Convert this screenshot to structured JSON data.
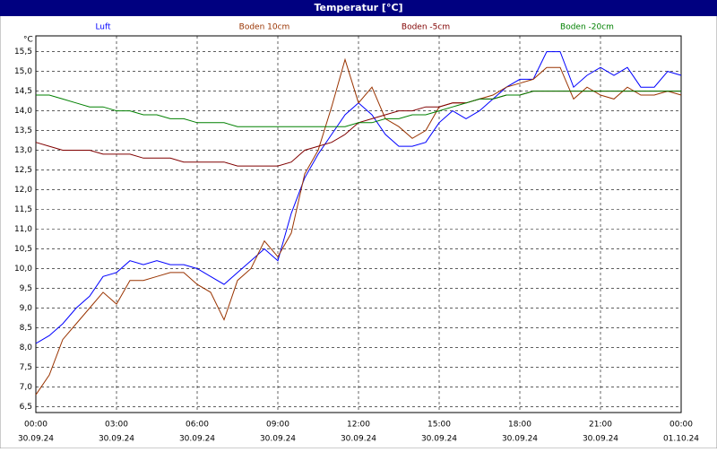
{
  "chart_data": {
    "type": "line",
    "title": "Temperatur [°C]",
    "y_label": "°C",
    "x": [
      0,
      0.5,
      1,
      1.5,
      2,
      2.5,
      3,
      3.5,
      4,
      4.5,
      5,
      5.5,
      6,
      6.5,
      7,
      7.5,
      8,
      8.5,
      9,
      9.5,
      10,
      10.5,
      11,
      11.5,
      12,
      12.5,
      13,
      13.5,
      14,
      14.5,
      15,
      15.5,
      16,
      16.5,
      17,
      17.5,
      18,
      18.5,
      19,
      19.5,
      20,
      20.5,
      21,
      21.5,
      22,
      22.5,
      23,
      23.5,
      24
    ],
    "xlim": [
      0,
      24
    ],
    "xticks": [
      {
        "value": 0,
        "label": "00:00"
      },
      {
        "value": 3,
        "label": "03:00"
      },
      {
        "value": 6,
        "label": "06:00"
      },
      {
        "value": 9,
        "label": "09:00"
      },
      {
        "value": 12,
        "label": "12:00"
      },
      {
        "value": 15,
        "label": "15:00"
      },
      {
        "value": 18,
        "label": "18:00"
      },
      {
        "value": 21,
        "label": "21:00"
      },
      {
        "value": 24,
        "label": "00:00"
      }
    ],
    "xtick_dates": [
      "30.09.24",
      "30.09.24",
      "30.09.24",
      "30.09.24",
      "30.09.24",
      "30.09.24",
      "30.09.24",
      "30.09.24",
      "01.10.24"
    ],
    "ylim": [
      6.35,
      15.9
    ],
    "yticks": [
      {
        "value": 6.5,
        "label": "6,5"
      },
      {
        "value": 7,
        "label": "7,0"
      },
      {
        "value": 7.5,
        "label": "7,5"
      },
      {
        "value": 8,
        "label": "8,0"
      },
      {
        "value": 8.5,
        "label": "8,5"
      },
      {
        "value": 9,
        "label": "9,0"
      },
      {
        "value": 9.5,
        "label": "9,5"
      },
      {
        "value": 10,
        "label": "10,0"
      },
      {
        "value": 10.5,
        "label": "10,5"
      },
      {
        "value": 11,
        "label": "11,0"
      },
      {
        "value": 11.5,
        "label": "11,5"
      },
      {
        "value": 12,
        "label": "12,0"
      },
      {
        "value": 12.5,
        "label": "12,5"
      },
      {
        "value": 13,
        "label": "13,0"
      },
      {
        "value": 13.5,
        "label": "13,5"
      },
      {
        "value": 14,
        "label": "14,0"
      },
      {
        "value": 14.5,
        "label": "14,5"
      },
      {
        "value": 15,
        "label": "15,0"
      },
      {
        "value": 15.5,
        "label": "15,5"
      }
    ],
    "grid": true,
    "legend": "top",
    "series": [
      {
        "name": "Luft",
        "color": "#0000ff",
        "values": [
          8.1,
          8.3,
          8.6,
          9.0,
          9.3,
          9.8,
          9.9,
          10.2,
          10.1,
          10.2,
          10.1,
          10.1,
          10.0,
          9.8,
          9.6,
          9.9,
          10.2,
          10.5,
          10.2,
          11.4,
          12.3,
          12.9,
          13.4,
          13.9,
          14.2,
          13.9,
          13.4,
          13.1,
          13.1,
          13.2,
          13.7,
          14.0,
          13.8,
          14.0,
          14.3,
          14.6,
          14.8,
          14.8,
          15.5,
          15.5,
          14.6,
          14.9,
          15.1,
          14.9,
          15.1,
          14.6,
          14.6,
          15.0,
          14.9
        ]
      },
      {
        "name": "Boden 10cm",
        "color": "#993300",
        "values": [
          6.8,
          7.3,
          8.2,
          8.6,
          9.0,
          9.4,
          9.1,
          9.7,
          9.7,
          9.8,
          9.9,
          9.9,
          9.6,
          9.4,
          8.7,
          9.7,
          10.0,
          10.7,
          10.3,
          10.9,
          12.4,
          13.0,
          14.1,
          15.3,
          14.2,
          14.6,
          13.8,
          13.6,
          13.3,
          13.5,
          14.1,
          14.2,
          14.2,
          14.3,
          14.4,
          14.6,
          14.7,
          14.8,
          15.1,
          15.1,
          14.3,
          14.6,
          14.4,
          14.3,
          14.6,
          14.4,
          14.4,
          14.5,
          14.4
        ]
      },
      {
        "name": "Boden -5cm",
        "color": "#800000",
        "values": [
          13.2,
          13.1,
          13.0,
          13.0,
          13.0,
          12.9,
          12.9,
          12.9,
          12.8,
          12.8,
          12.8,
          12.7,
          12.7,
          12.7,
          12.7,
          12.6,
          12.6,
          12.6,
          12.6,
          12.7,
          13.0,
          13.1,
          13.2,
          13.4,
          13.7,
          13.8,
          13.9,
          14.0,
          14.0,
          14.1,
          14.1,
          14.2,
          14.2,
          14.3,
          14.3,
          14.4,
          14.4,
          14.5,
          14.5,
          14.5,
          14.5,
          14.5,
          14.5,
          14.5,
          14.5,
          14.5,
          14.5,
          14.5,
          14.5
        ]
      },
      {
        "name": "Boden -20cm",
        "color": "#008000",
        "values": [
          14.4,
          14.4,
          14.3,
          14.2,
          14.1,
          14.1,
          14.0,
          14.0,
          13.9,
          13.9,
          13.8,
          13.8,
          13.7,
          13.7,
          13.7,
          13.6,
          13.6,
          13.6,
          13.6,
          13.6,
          13.6,
          13.6,
          13.6,
          13.6,
          13.7,
          13.7,
          13.8,
          13.8,
          13.9,
          13.9,
          14.0,
          14.1,
          14.2,
          14.3,
          14.3,
          14.4,
          14.4,
          14.5,
          14.5,
          14.5,
          14.5,
          14.5,
          14.5,
          14.5,
          14.5,
          14.5,
          14.5,
          14.5,
          14.5
        ]
      }
    ]
  }
}
